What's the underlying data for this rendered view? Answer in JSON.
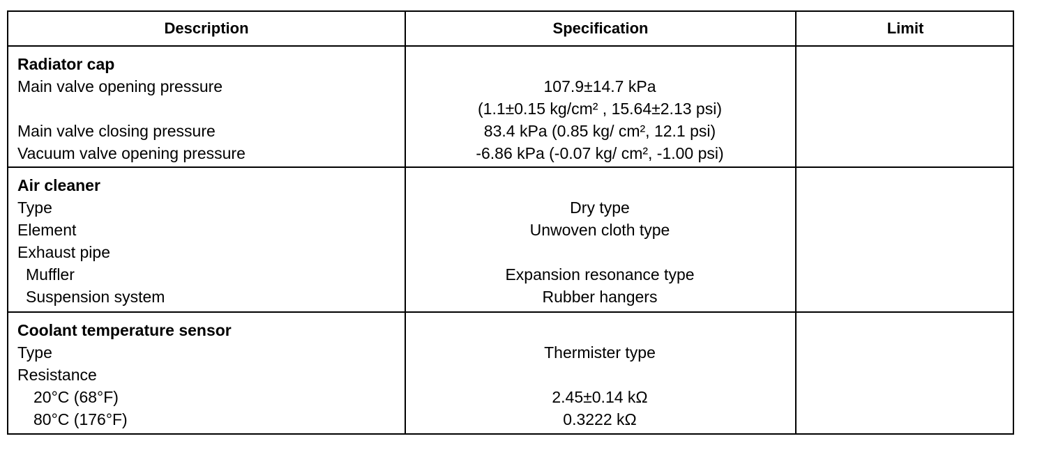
{
  "table": {
    "headers": [
      "Description",
      "Specification",
      "Limit"
    ],
    "sections": [
      {
        "title": "Radiator cap",
        "rows": [
          {
            "label": "Main valve opening pressure",
            "spec": "107.9±14.7 kPa"
          },
          {
            "spec": "(1.1±0.15 kg/cm² , 15.64±2.13 psi)"
          },
          {
            "label": "Main valve closing pressure",
            "spec": "83.4 kPa (0.85 kg/ cm², 12.1 psi)"
          },
          {
            "label": "Vacuum valve opening pressure",
            "spec": "-6.86 kPa (-0.07 kg/ cm², -1.00 psi)"
          }
        ]
      },
      {
        "title": "Air cleaner",
        "rows": [
          {
            "label": "Type",
            "spec": "Dry type"
          },
          {
            "label": "Element",
            "spec": "Unwoven cloth type"
          },
          {
            "label": "Exhaust pipe"
          },
          {
            "label": "Muffler",
            "spec": "Expansion resonance type"
          },
          {
            "label": "Suspension system",
            "spec": "Rubber hangers"
          }
        ]
      },
      {
        "title": "Coolant temperature sensor",
        "rows": [
          {
            "label": "Type",
            "spec": "Thermister type"
          },
          {
            "label": "Resistance"
          },
          {
            "label": "20°C (68°F)",
            "spec": "2.45±0.14 kΩ"
          },
          {
            "label": "80°C (176°F)",
            "spec": "0.3222 kΩ"
          }
        ]
      }
    ]
  }
}
